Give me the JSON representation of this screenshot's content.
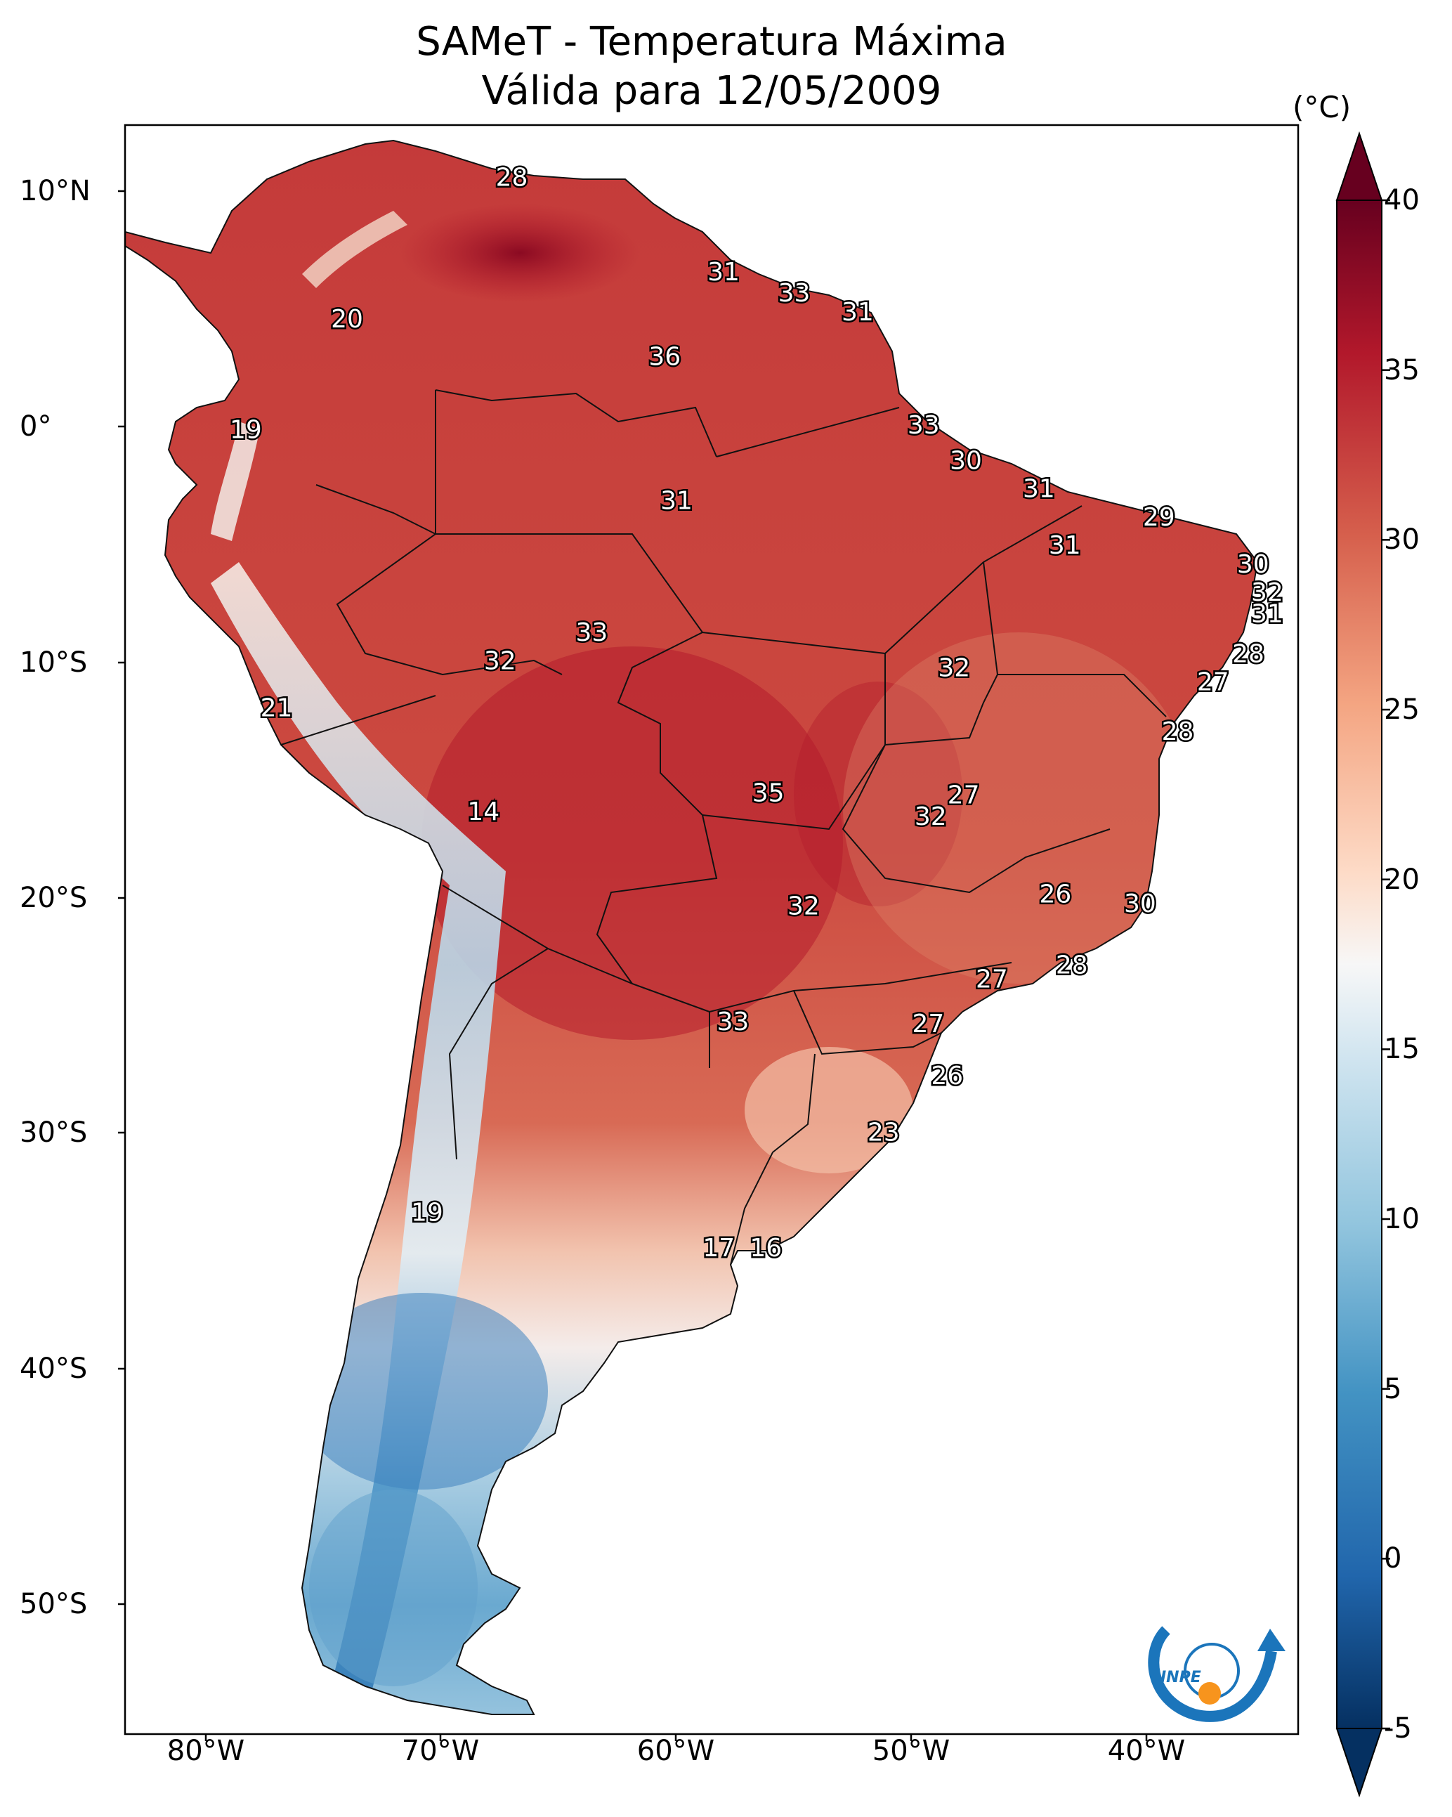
{
  "title": "SAMeT - Temperatura Máxima",
  "subtitle": "Válida para 12/05/2009",
  "units_label": "(°C)",
  "axes": {
    "lat_labels": [
      "10°N",
      "0°",
      "10°S",
      "20°S",
      "30°S",
      "40°S",
      "50°S"
    ],
    "lon_labels": [
      "80°W",
      "70°W",
      "60°W",
      "50°W",
      "40°W"
    ]
  },
  "colorbar": {
    "min": -5,
    "max": 40,
    "ticks": [
      "40",
      "35",
      "30",
      "25",
      "20",
      "15",
      "10",
      "5",
      "0",
      "-5"
    ],
    "colormap": "RdBu_r",
    "colors": [
      "#053061",
      "#2166ac",
      "#4393c3",
      "#92c5de",
      "#d1e5f0",
      "#f7f7f7",
      "#fddbc7",
      "#f4a582",
      "#d6604d",
      "#b2182b",
      "#67001f"
    ]
  },
  "logo": "INPE",
  "map_labels": [
    {
      "v": "28",
      "lat": 10.5,
      "lon": -67.0
    },
    {
      "v": "31",
      "lat": 6.5,
      "lon": -58.0
    },
    {
      "v": "33",
      "lat": 5.6,
      "lon": -55.0
    },
    {
      "v": "31",
      "lat": 4.8,
      "lon": -52.3
    },
    {
      "v": "20",
      "lat": 4.5,
      "lon": -74.0
    },
    {
      "v": "36",
      "lat": 2.9,
      "lon": -60.5
    },
    {
      "v": "33",
      "lat": 0.0,
      "lon": -49.5
    },
    {
      "v": "19",
      "lat": -0.2,
      "lon": -78.3
    },
    {
      "v": "30",
      "lat": -1.5,
      "lon": -47.7
    },
    {
      "v": "31",
      "lat": -2.7,
      "lon": -44.6
    },
    {
      "v": "31",
      "lat": -3.2,
      "lon": -60.0
    },
    {
      "v": "29",
      "lat": -3.9,
      "lon": -39.5
    },
    {
      "v": "31",
      "lat": -5.1,
      "lon": -43.5
    },
    {
      "v": "30",
      "lat": -5.9,
      "lon": -35.5
    },
    {
      "v": "32",
      "lat": -7.1,
      "lon": -34.9
    },
    {
      "v": "31",
      "lat": -8.0,
      "lon": -34.9
    },
    {
      "v": "33",
      "lat": -8.8,
      "lon": -63.6
    },
    {
      "v": "32",
      "lat": -10.0,
      "lon": -67.5
    },
    {
      "v": "32",
      "lat": -10.3,
      "lon": -48.2
    },
    {
      "v": "28",
      "lat": -9.7,
      "lon": -35.7
    },
    {
      "v": "27",
      "lat": -10.9,
      "lon": -37.2
    },
    {
      "v": "21",
      "lat": -12.0,
      "lon": -77.0
    },
    {
      "v": "28",
      "lat": -13.0,
      "lon": -38.7
    },
    {
      "v": "35",
      "lat": -15.6,
      "lon": -56.1
    },
    {
      "v": "27",
      "lat": -15.7,
      "lon": -47.8
    },
    {
      "v": "32",
      "lat": -16.6,
      "lon": -49.2
    },
    {
      "v": "14",
      "lat": -16.4,
      "lon": -68.2
    },
    {
      "v": "26",
      "lat": -19.9,
      "lon": -43.9
    },
    {
      "v": "30",
      "lat": -20.3,
      "lon": -40.3
    },
    {
      "v": "32",
      "lat": -20.4,
      "lon": -54.6
    },
    {
      "v": "28",
      "lat": -22.9,
      "lon": -43.2
    },
    {
      "v": "27",
      "lat": -23.5,
      "lon": -46.6
    },
    {
      "v": "33",
      "lat": -25.3,
      "lon": -57.6
    },
    {
      "v": "27",
      "lat": -25.4,
      "lon": -49.3
    },
    {
      "v": "26",
      "lat": -27.6,
      "lon": -48.5
    },
    {
      "v": "23",
      "lat": -30.0,
      "lon": -51.2
    },
    {
      "v": "19",
      "lat": -33.4,
      "lon": -70.6
    },
    {
      "v": "17",
      "lat": -34.9,
      "lon": -58.2
    },
    {
      "v": "16",
      "lat": -34.9,
      "lon": -56.2
    }
  ]
}
